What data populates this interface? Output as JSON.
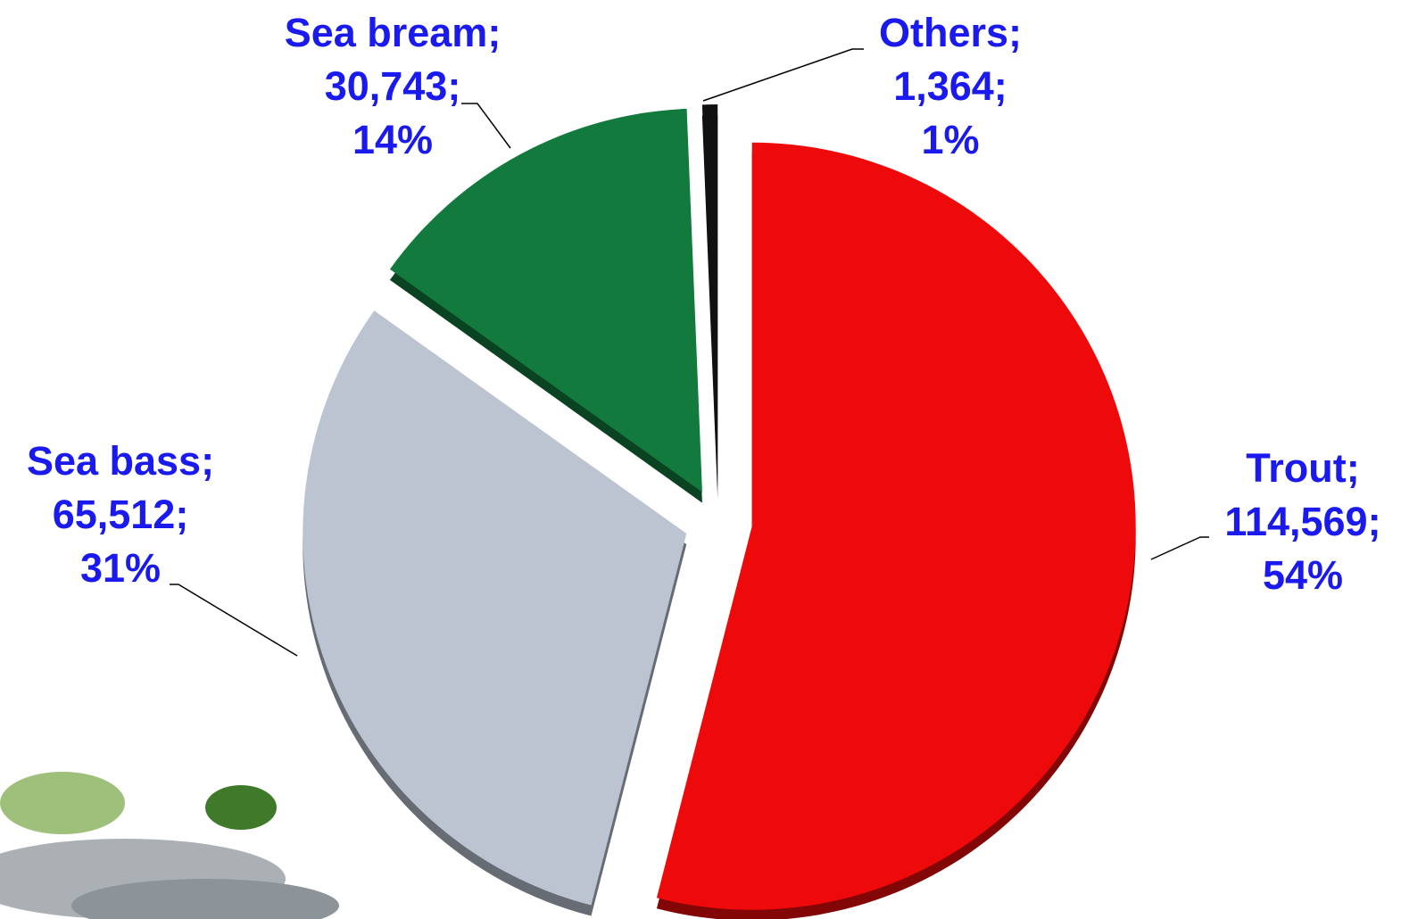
{
  "chart_data": {
    "type": "pie",
    "categories": [
      "Trout;",
      "Sea bass;",
      "Sea bream;",
      "Others;"
    ],
    "values": [
      114569,
      65512,
      30743,
      1364
    ],
    "value_labels": [
      "114,569;",
      "65,512;",
      "30,743;",
      "1,364;"
    ],
    "percents": [
      54,
      31,
      14,
      1
    ],
    "percent_labels": [
      "54%",
      "31%",
      "14%",
      "1%"
    ],
    "colors": [
      "#ee0a0a",
      "#bcc3d1",
      "#117a3c",
      "#111111"
    ],
    "start_angle": 0,
    "direction": "clockwise"
  }
}
